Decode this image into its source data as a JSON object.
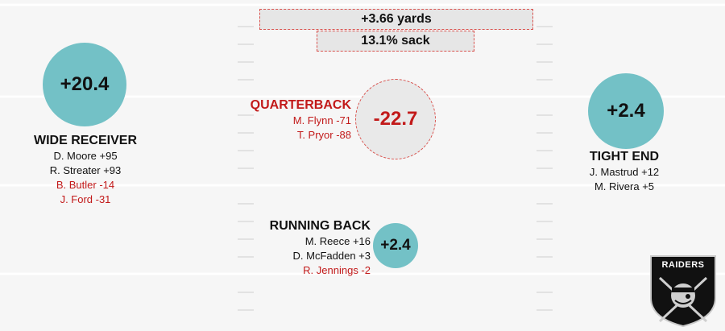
{
  "summary": {
    "yards": "+3.66 yards",
    "sack": "13.1% sack"
  },
  "positions": {
    "wide_receiver": {
      "title": "WIDE RECEIVER",
      "score": "+20.4",
      "players": [
        "D. Moore +95",
        "R. Streater +93",
        "B. Butler -14",
        "J. Ford -31"
      ]
    },
    "quarterback": {
      "title": "QUARTERBACK",
      "score": "-22.7",
      "players": [
        "M. Flynn -71",
        "T. Pryor -88"
      ]
    },
    "tight_end": {
      "title": "TIGHT END",
      "score": "+2.4",
      "players": [
        "J. Mastrud +12",
        "M. Rivera +5"
      ]
    },
    "running_back": {
      "title": "RUNNING BACK",
      "score": "+2.4",
      "players": [
        "M. Reece +16",
        "D. McFadden +3",
        "R. Jennings -2"
      ]
    }
  },
  "logo": {
    "text": "RAIDERS"
  },
  "colors": {
    "positive_circle": "#73c1c6",
    "negative_text": "#c21a1a",
    "background": "#f6f6f6"
  }
}
